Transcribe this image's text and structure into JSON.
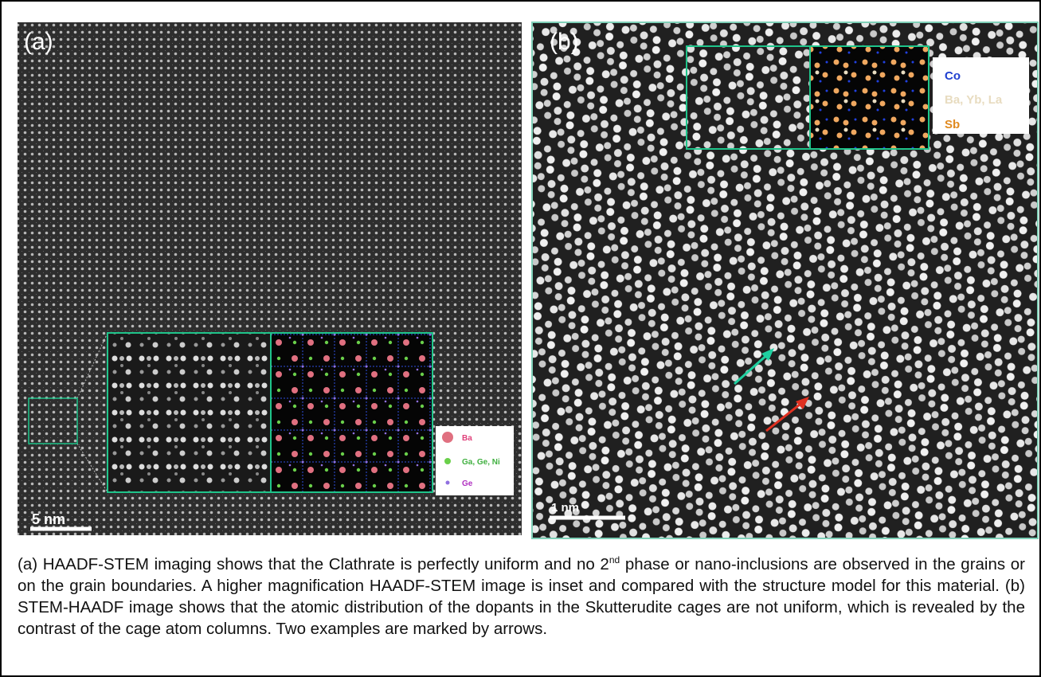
{
  "panels": [
    {
      "label": "(a)",
      "scale_bar": "5 nm",
      "legend": [
        "Ba",
        "Ga, Ge, Ni",
        "Ge"
      ]
    },
    {
      "label": "(b)",
      "scale_bar": "1 nm",
      "legend": [
        "Co",
        "Ba, Yb, La",
        "Sb"
      ]
    }
  ],
  "caption": {
    "part1": "(a) HAADF-STEM imaging shows that the Clathrate is perfectly uniform and no 2",
    "superscript": "nd",
    "part2": " phase or nano-inclusions are observed in the grains or on the grain boundaries. A higher magnification HAADF-STEM image is inset and compared with the structure model for this material. (b) STEM-HAADF image shows that the atomic distribution of the dopants in the Skutterudite cages are not uniform, which is revealed by the contrast of the cage atom columns. Two examples are marked by arrows."
  }
}
